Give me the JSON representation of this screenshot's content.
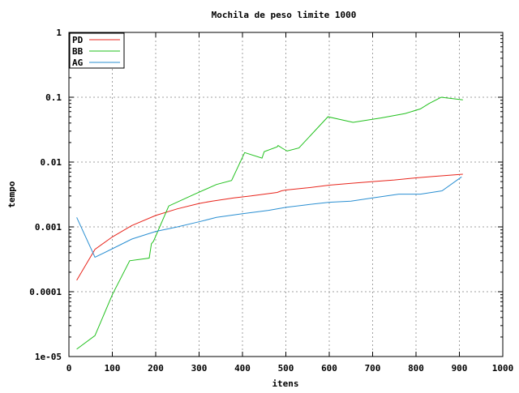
{
  "chart_data": {
    "type": "line",
    "title": "Mochila de peso limite 1000",
    "xlabel": "itens",
    "ylabel": "tempo",
    "xlim": [
      0,
      1000
    ],
    "ylim": [
      1e-05,
      1
    ],
    "yscale": "log",
    "grid": true,
    "legend_position": "top-left",
    "xticks": [
      0,
      100,
      200,
      300,
      400,
      500,
      600,
      700,
      800,
      900,
      1000
    ],
    "xtick_labels": [
      "0",
      "100",
      "200",
      "300",
      "400",
      "500",
      "600",
      "700",
      "800",
      "900",
      "1000"
    ],
    "yticks": [
      1e-05,
      0.0001,
      0.001,
      0.01,
      0.1,
      1
    ],
    "ytick_labels": [
      "1e-05",
      "0.0001",
      "0.001",
      "0.01",
      "0.1",
      "1"
    ],
    "series": [
      {
        "name": "PD",
        "color": "#e8251c",
        "x": [
          18,
          60,
          100,
          145,
          200,
          250,
          300,
          330,
          380,
          420,
          450,
          480,
          490,
          500,
          550,
          600,
          650,
          700,
          750,
          800,
          840,
          880,
          908
        ],
        "y": [
          0.00015,
          0.00045,
          0.0007,
          0.00105,
          0.0015,
          0.0019,
          0.0023,
          0.0025,
          0.0028,
          0.003,
          0.0032,
          0.0034,
          0.0036,
          0.0037,
          0.004,
          0.0044,
          0.0047,
          0.005,
          0.0053,
          0.0057,
          0.006,
          0.0063,
          0.0065
        ]
      },
      {
        "name": "BB",
        "color": "#22c11e",
        "x": [
          18,
          60,
          100,
          140,
          185,
          190,
          195,
          230,
          290,
          340,
          375,
          405,
          445,
          450,
          480,
          482,
          492,
          503,
          530,
          597,
          655,
          720,
          775,
          810,
          830,
          858,
          908
        ],
        "y": [
          1.3e-05,
          2.1e-05,
          9e-05,
          0.0003,
          0.00033,
          0.00055,
          0.0006,
          0.0021,
          0.0032,
          0.0045,
          0.0052,
          0.014,
          0.0115,
          0.0145,
          0.0172,
          0.018,
          0.0163,
          0.0148,
          0.0165,
          0.05,
          0.041,
          0.048,
          0.056,
          0.066,
          0.08,
          0.1,
          0.091
        ]
      },
      {
        "name": "AG",
        "color": "#2a8fd2",
        "x": [
          18,
          60,
          100,
          145,
          200,
          250,
          300,
          340,
          400,
          460,
          500,
          550,
          600,
          650,
          700,
          760,
          810,
          860,
          905
        ],
        "y": [
          0.0014,
          0.00034,
          0.00046,
          0.00065,
          0.00085,
          0.001,
          0.0012,
          0.0014,
          0.0016,
          0.0018,
          0.002,
          0.0022,
          0.0024,
          0.0025,
          0.0028,
          0.0032,
          0.0032,
          0.0036,
          0.0059
        ]
      }
    ]
  }
}
